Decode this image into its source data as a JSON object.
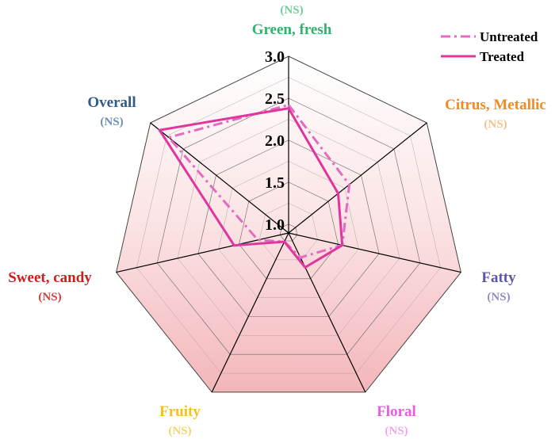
{
  "chart_data": {
    "type": "radar",
    "title": "",
    "axes": [
      {
        "label": "Green, fresh",
        "significance": "(NS)",
        "color": "#2db36a",
        "sig_color": "#6fcf97"
      },
      {
        "label": "Citrus, Metallic",
        "significance": "(NS)",
        "color": "#f08a24",
        "sig_color": "#f5c08a"
      },
      {
        "label": "Fatty",
        "significance": "(NS)",
        "color": "#5b57a6",
        "sig_color": "#8f8cc8"
      },
      {
        "label": "Floral",
        "significance": "(NS)",
        "color": "#e35ee0",
        "sig_color": "#f2a6ef"
      },
      {
        "label": "Fruity",
        "significance": "(NS)",
        "color": "#f2c020",
        "sig_color": "#f5d46a"
      },
      {
        "label": "Sweet, candy",
        "significance": "(NS)",
        "color": "#d01c1c",
        "sig_color": "#dc3a3a"
      },
      {
        "label": "Overall",
        "significance": "(NS)",
        "color": "#2f5c8a",
        "sig_color": "#6a8fb8"
      }
    ],
    "r_range": [
      1.0,
      3.0
    ],
    "ticks": [
      1.0,
      1.5,
      2.0,
      2.5,
      3.0
    ],
    "tick_labels": [
      "1.0",
      "1.5",
      "2.0",
      "2.5",
      "3.0"
    ],
    "series": [
      {
        "name": "Untreated",
        "values": [
          2.42,
          1.82,
          1.55,
          1.22,
          1.01,
          1.27,
          2.72
        ],
        "color": "#e36bc0",
        "style": "dash-dot"
      },
      {
        "name": "Treated",
        "values": [
          2.38,
          1.65,
          1.55,
          1.35,
          1.01,
          1.56,
          2.86
        ],
        "color": "#e0359f",
        "style": "solid"
      }
    ],
    "grid": true,
    "legend_position": "top-right"
  },
  "colors": {
    "fill_light": "#ffffff",
    "fill_dark": "#f3b6ba"
  }
}
